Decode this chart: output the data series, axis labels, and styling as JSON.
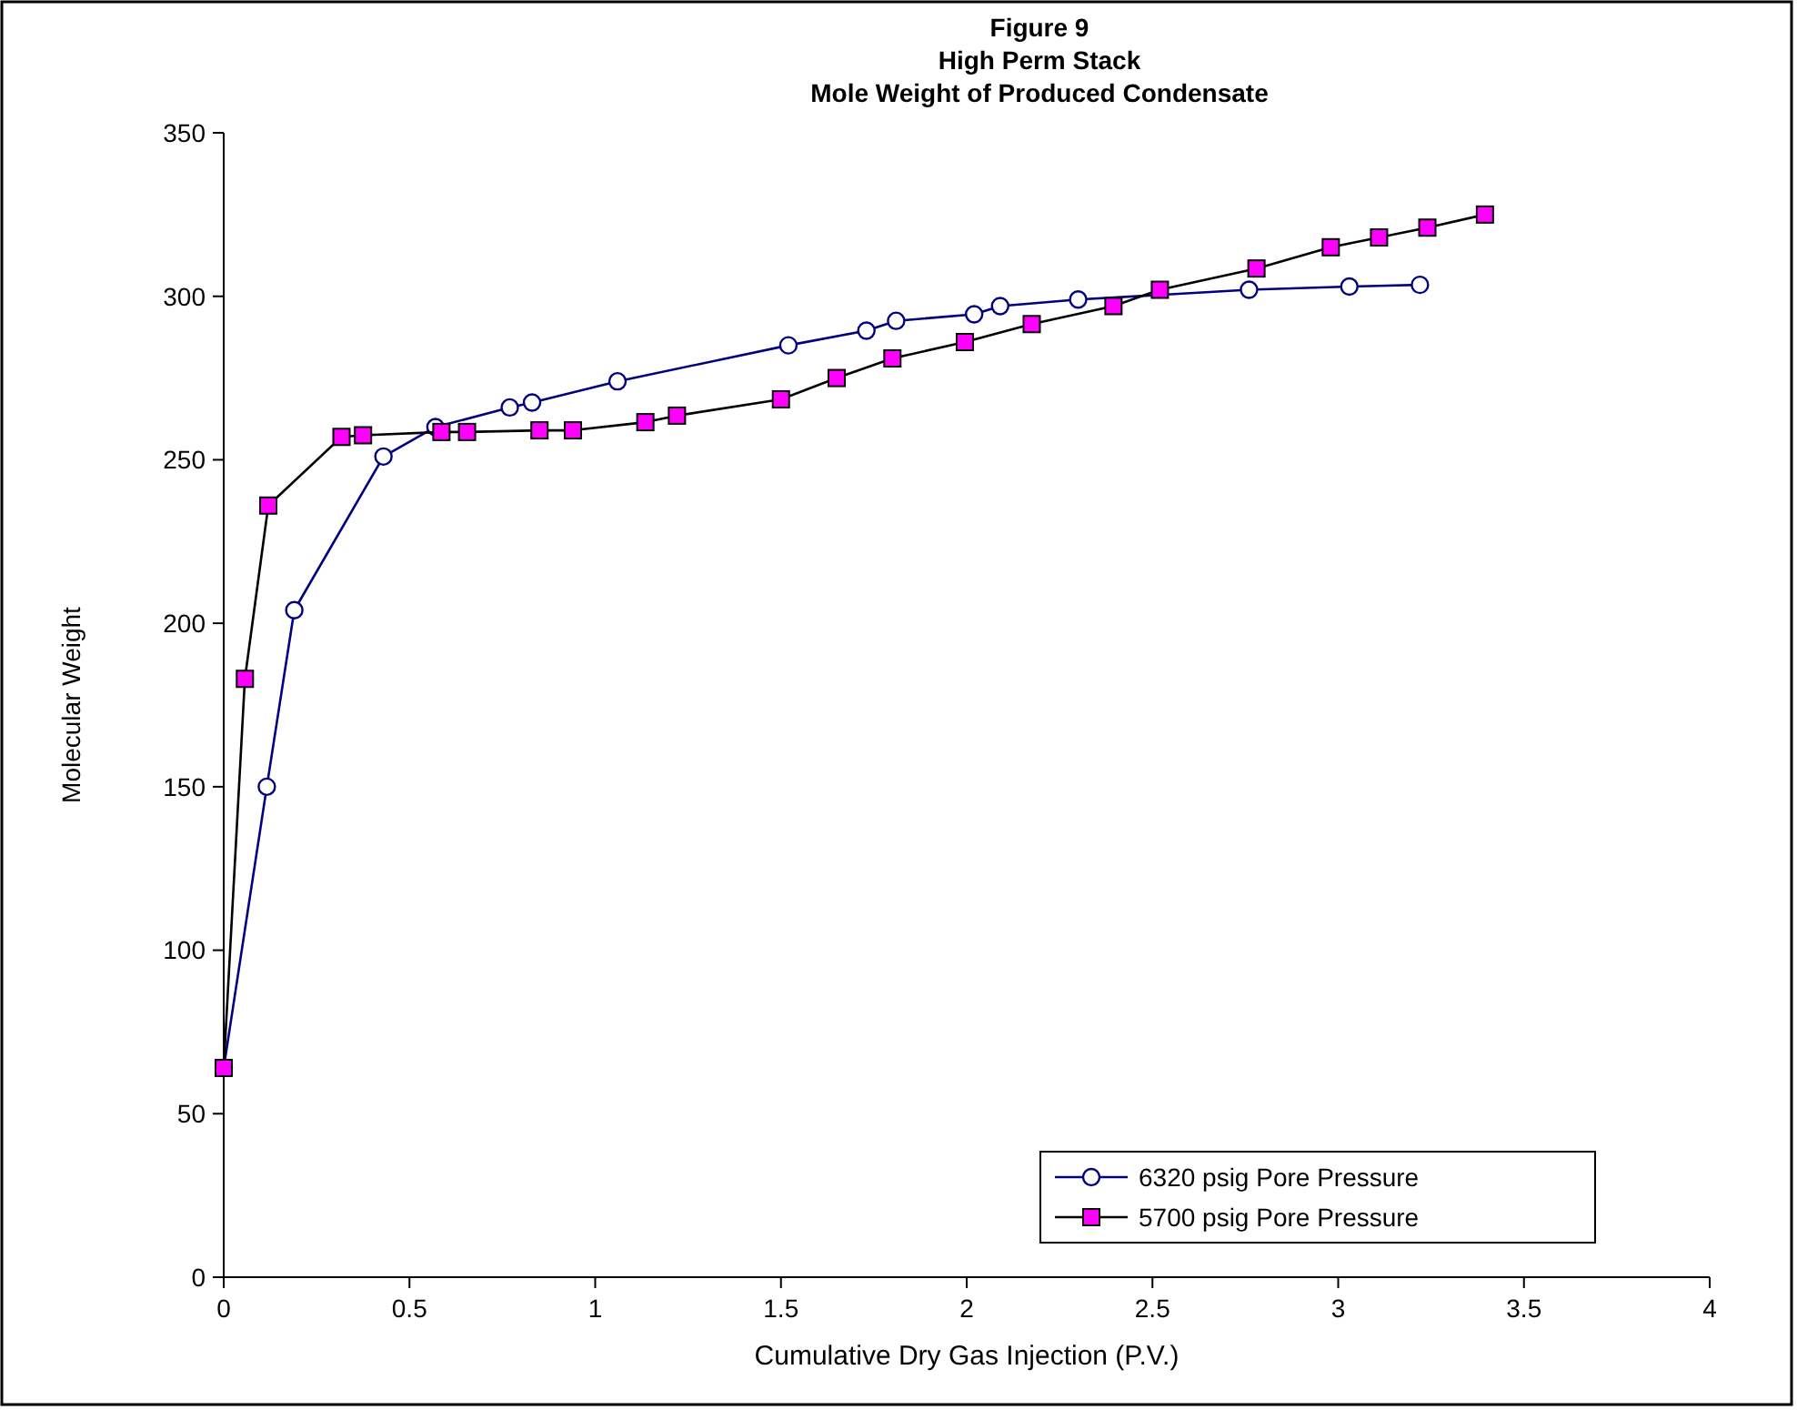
{
  "chart_data": {
    "type": "line",
    "title": "Figure 9\nHigh Perm Stack\nMole Weight of Produced Condensate",
    "xlabel": "Cumulative Dry Gas Injection (P.V.)",
    "ylabel": "Molecular Weight",
    "xlim": [
      0,
      4
    ],
    "xticks": [
      0,
      0.5,
      1,
      1.5,
      2,
      2.5,
      3,
      3.5,
      4
    ],
    "ylim": [
      0,
      350
    ],
    "yticks": [
      0,
      50,
      100,
      150,
      200,
      250,
      300,
      350
    ],
    "grid": false,
    "legend": "bottom right",
    "line_style": "solid",
    "series": [
      {
        "name": "6320 psig Pore Pressure",
        "color": "#000080",
        "marker": "circle",
        "x": [
          0,
          0.116,
          0.19,
          0.43,
          0.57,
          0.77,
          0.83,
          1.06,
          1.52,
          1.73,
          1.81,
          2.02,
          2.09,
          2.3,
          2.76,
          3.03,
          3.22
        ],
        "values": [
          64,
          150,
          204,
          251,
          260,
          266,
          267.5,
          274,
          285,
          289.5,
          292.5,
          294.5,
          297,
          299,
          302,
          303,
          303.5
        ]
      },
      {
        "name": "5700 psig Pore Pressure",
        "color": "#000000",
        "marker": "square",
        "x": [
          0,
          0.057,
          0.12,
          0.317,
          0.375,
          0.586,
          0.655,
          0.85,
          0.94,
          1.135,
          1.22,
          1.5,
          1.65,
          1.8,
          1.995,
          2.175,
          2.395,
          2.52,
          2.78,
          2.98,
          3.11,
          3.24,
          3.395
        ],
        "values": [
          64,
          183,
          236,
          257,
          257.5,
          258.5,
          258.5,
          259,
          259,
          261.5,
          263.5,
          268.5,
          275,
          281,
          286,
          291.5,
          297,
          302,
          308.5,
          315,
          318,
          321,
          325
        ]
      }
    ]
  }
}
